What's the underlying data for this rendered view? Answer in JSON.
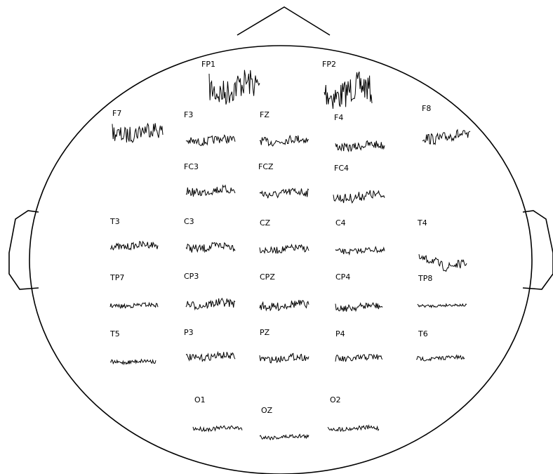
{
  "electrodes": [
    {
      "label": "FP1"
    },
    {
      "label": "FP2"
    },
    {
      "label": "F7"
    },
    {
      "label": "F3"
    },
    {
      "label": "FZ"
    },
    {
      "label": "F4"
    },
    {
      "label": "F8"
    },
    {
      "label": "FC3"
    },
    {
      "label": "FCZ"
    },
    {
      "label": "FC4"
    },
    {
      "label": "T3"
    },
    {
      "label": "C3"
    },
    {
      "label": "CZ"
    },
    {
      "label": "C4"
    },
    {
      "label": "T4"
    },
    {
      "label": "TP7"
    },
    {
      "label": "CP3"
    },
    {
      "label": "CPZ"
    },
    {
      "label": "CP4"
    },
    {
      "label": "TP8"
    },
    {
      "label": "T5"
    },
    {
      "label": "P3"
    },
    {
      "label": "PZ"
    },
    {
      "label": "P4"
    },
    {
      "label": "T6"
    },
    {
      "label": "O1"
    },
    {
      "label": "OZ"
    },
    {
      "label": "O2"
    }
  ]
}
